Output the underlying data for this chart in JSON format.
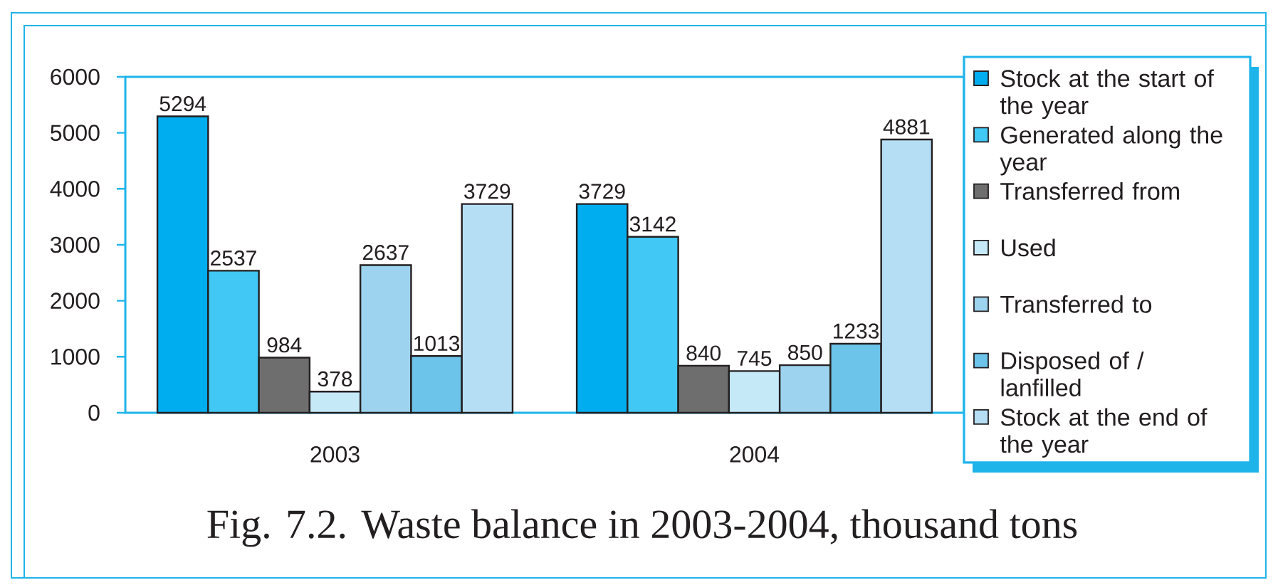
{
  "chart_data": {
    "type": "bar",
    "title": "Fig. 7.2. Waste balance in 2003-2004, thousand tons",
    "categories": [
      "2003",
      "2004"
    ],
    "series": [
      {
        "name": "Stock at the start of the year",
        "color": "#00adef",
        "values": [
          5294,
          3729
        ]
      },
      {
        "name": "Generated along the year",
        "color": "#41c8f5",
        "values": [
          2537,
          3142
        ]
      },
      {
        "name": "Transferred from",
        "color": "#6e6e6e",
        "values": [
          984,
          840
        ]
      },
      {
        "name": "Used",
        "color": "#c6e9f8",
        "values": [
          378,
          745
        ]
      },
      {
        "name": "Transferred to",
        "color": "#9dd3ee",
        "values": [
          2637,
          850
        ]
      },
      {
        "name": "Disposed of / lanfilled",
        "color": "#6cc4ea",
        "values": [
          1013,
          1233
        ]
      },
      {
        "name": "Stock at the end of the year",
        "color": "#b5def4",
        "values": [
          3729,
          4881
        ]
      }
    ],
    "ylim": [
      0,
      6000
    ],
    "yticks": [
      0,
      1000,
      2000,
      3000,
      4000,
      5000,
      6000
    ],
    "legend": "right",
    "data_labels": true
  }
}
